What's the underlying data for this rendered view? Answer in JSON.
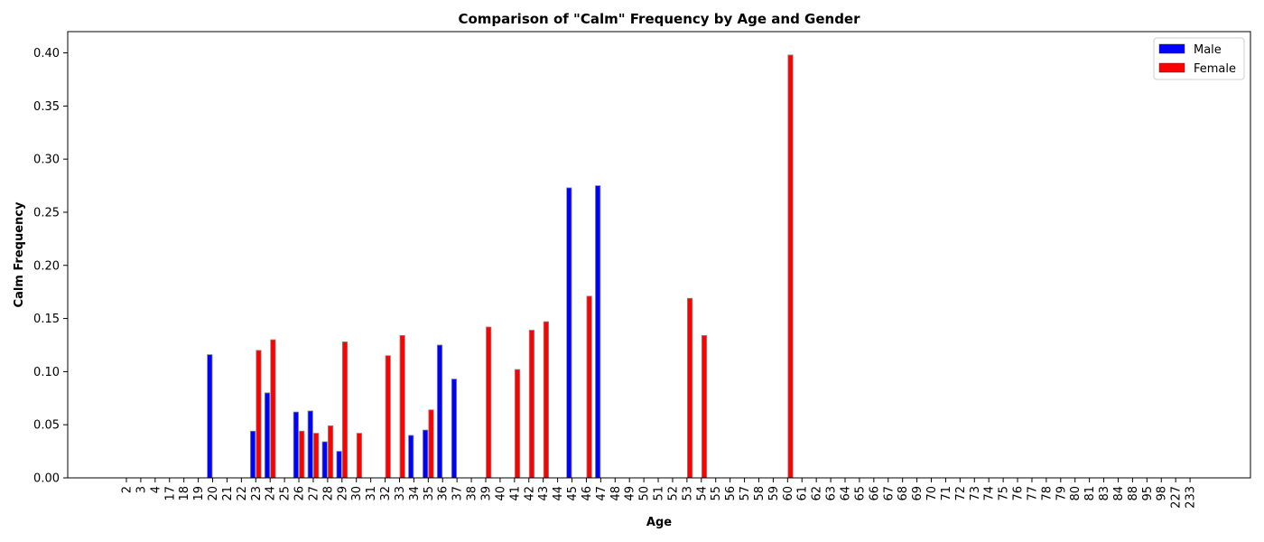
{
  "chart_data": {
    "type": "bar",
    "title": "Comparison of \"Calm\" Frequency by Age and Gender",
    "xlabel": "Age",
    "ylabel": "Calm Frequency",
    "ylim": [
      0,
      0.42
    ],
    "yticks": [
      "0.00",
      "0.05",
      "0.10",
      "0.15",
      "0.20",
      "0.25",
      "0.30",
      "0.35",
      "0.40"
    ],
    "grid": false,
    "legend_position": "top-right",
    "categories": [
      "2",
      "3",
      "4",
      "17",
      "18",
      "19",
      "20",
      "21",
      "22",
      "23",
      "24",
      "25",
      "26",
      "27",
      "28",
      "29",
      "30",
      "31",
      "32",
      "33",
      "34",
      "35",
      "36",
      "37",
      "38",
      "39",
      "40",
      "41",
      "42",
      "43",
      "44",
      "45",
      "46",
      "47",
      "48",
      "49",
      "50",
      "51",
      "52",
      "53",
      "54",
      "55",
      "56",
      "57",
      "58",
      "59",
      "60",
      "61",
      "62",
      "63",
      "64",
      "65",
      "66",
      "67",
      "68",
      "69",
      "70",
      "71",
      "72",
      "73",
      "74",
      "75",
      "76",
      "77",
      "78",
      "79",
      "80",
      "81",
      "83",
      "84",
      "88",
      "95",
      "98",
      "227",
      "233"
    ],
    "series": [
      {
        "name": "Male",
        "color": "#0000ff",
        "values": [
          0,
          0,
          0,
          0,
          0,
          0,
          0.116,
          0,
          0,
          0.044,
          0.08,
          0,
          0.062,
          0.063,
          0.034,
          0.025,
          0,
          0,
          0,
          0,
          0.04,
          0.045,
          0.125,
          0.093,
          0,
          0,
          0,
          0,
          0,
          0,
          0,
          0.273,
          0,
          0.275,
          0,
          0,
          0,
          0,
          0,
          0,
          0,
          0,
          0,
          0,
          0,
          0,
          0,
          0,
          0,
          0,
          0,
          0,
          0,
          0,
          0,
          0,
          0,
          0,
          0,
          0,
          0,
          0,
          0,
          0,
          0,
          0,
          0,
          0,
          0,
          0,
          0,
          0,
          0,
          0,
          0
        ]
      },
      {
        "name": "Female",
        "color": "#ff0000",
        "values": [
          0,
          0,
          0,
          0,
          0,
          0,
          0,
          0,
          0,
          0.12,
          0.13,
          0,
          0.044,
          0.042,
          0.049,
          0.128,
          0.042,
          0,
          0.115,
          0.134,
          0,
          0.064,
          0,
          0,
          0,
          0.142,
          0,
          0.102,
          0.139,
          0.147,
          0,
          0,
          0.171,
          0,
          0,
          0,
          0,
          0,
          0,
          0.169,
          0.134,
          0,
          0,
          0,
          0,
          0,
          0.398,
          0,
          0,
          0,
          0,
          0,
          0,
          0,
          0,
          0,
          0,
          0,
          0,
          0,
          0,
          0,
          0,
          0,
          0,
          0,
          0,
          0,
          0,
          0,
          0,
          0,
          0,
          0,
          0
        ]
      }
    ]
  }
}
